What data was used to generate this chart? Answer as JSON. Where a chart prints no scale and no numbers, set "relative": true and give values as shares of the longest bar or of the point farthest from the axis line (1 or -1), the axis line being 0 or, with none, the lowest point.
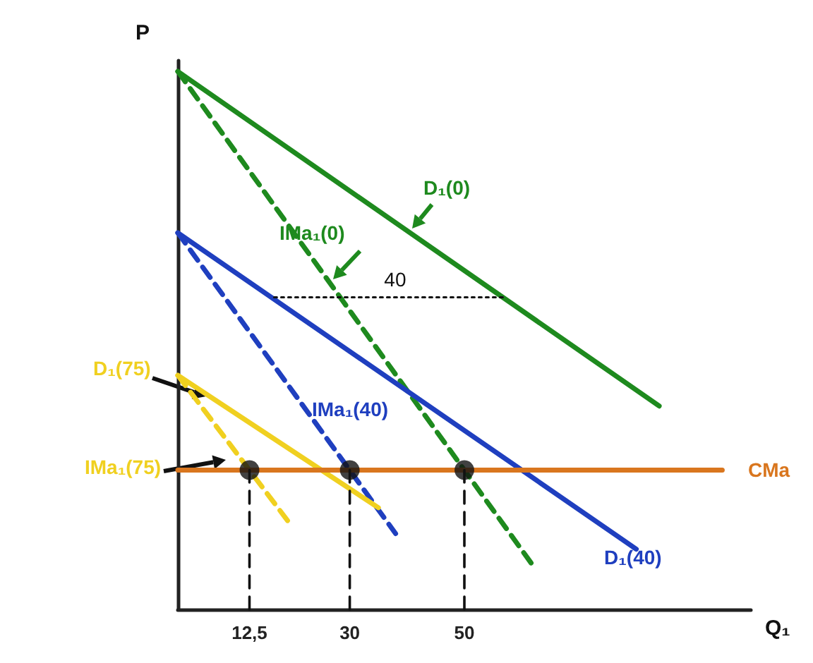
{
  "chart_data": {
    "type": "line",
    "relative": true,
    "xlabel": "Q₁",
    "ylabel": "P",
    "xlim": [
      0,
      100
    ],
    "xticks": [
      {
        "value": 12.5,
        "label": "12,5"
      },
      30,
      50
    ],
    "tick_labels": "x",
    "grid": false,
    "legend": false,
    "marker": "none",
    "series": [
      {
        "name": "D₁(0)",
        "color": "#1e8a1e",
        "x": [
          0,
          84
        ],
        "values": [
          1,
          0.378
        ],
        "line_style": "solid"
      },
      {
        "name": "IMa₁(0)",
        "color": "#1e8a1e",
        "x": [
          0,
          62
        ],
        "values": [
          1,
          0.081
        ],
        "line_style": "dashed"
      },
      {
        "name": "D₁(40)",
        "color": "#1f3fbf",
        "x": [
          0,
          80
        ],
        "values": [
          0.7,
          0.112
        ],
        "line_style": "solid"
      },
      {
        "name": "IMa₁(40)",
        "color": "#1f3fbf",
        "x": [
          0,
          38
        ],
        "values": [
          0.7,
          0.141
        ],
        "line_style": "dashed"
      },
      {
        "name": "D₁(75)",
        "color": "#f0d020",
        "x": [
          0,
          35
        ],
        "values": [
          0.435,
          0.189
        ],
        "line_style": "solid"
      },
      {
        "name": "IMa₁(75)",
        "color": "#f0d020",
        "x": [
          0,
          20
        ],
        "values": [
          0.435,
          0.153
        ],
        "line_style": "dashed"
      },
      {
        "name": "CMa",
        "color": "#d9761e",
        "x": [
          0,
          95
        ],
        "values": [
          0.259,
          0.259
        ],
        "line_style": "solid"
      },
      {
        "color": "#111111",
        "x": [
          12.5,
          12.5
        ],
        "values": [
          0,
          0.259
        ],
        "line_style": "dashed"
      },
      {
        "color": "#111111",
        "x": [
          30,
          30
        ],
        "values": [
          0,
          0.259
        ],
        "line_style": "dashed"
      },
      {
        "color": "#111111",
        "x": [
          50,
          50
        ],
        "values": [
          0,
          0.259
        ],
        "line_style": "dashed"
      },
      {
        "color": "#111111",
        "x": [
          56.7,
          16.3
        ],
        "values": [
          0.58,
          0.58
        ],
        "line_style": "dotted"
      },
      {
        "type": "scatter",
        "color": "#111111",
        "marker": "circle",
        "x": [
          12.5,
          30,
          50
        ],
        "values": [
          0.259,
          0.259,
          0.259
        ]
      }
    ],
    "annotations": [
      {
        "text": "40",
        "x": 36,
        "y": 0.58
      }
    ]
  }
}
